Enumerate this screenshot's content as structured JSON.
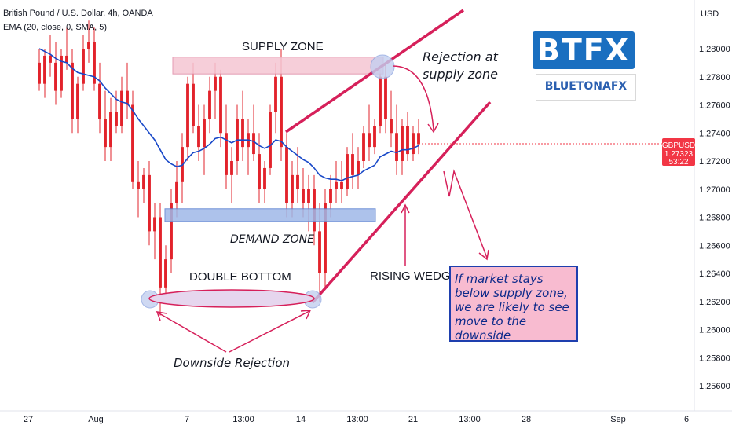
{
  "header": {
    "symbol_line": "British Pound / U.S. Dollar, 4h, OANDA",
    "indicator_line": "EMA (20, close, 0, SMA, 5)"
  },
  "currency_label": "USD",
  "ticker": {
    "symbol": "GBPUSD",
    "price": "1.27323",
    "countdown": "53:22"
  },
  "logo": {
    "main": "BTFX",
    "sub": "BLUETONAFX"
  },
  "colors": {
    "up": "#26a69a",
    "down": "#ef5350",
    "candle": "#e2232b",
    "ema": "#1848c8",
    "supply": "#f5c6d3",
    "demand": "#9fb8e8",
    "wedge": "#d6205a"
  },
  "annotations": {
    "supply_zone": "SUPPLY ZONE",
    "demand_zone": "DEMAND ZONE",
    "double_bottom": "DOUBLE BOTTOM",
    "rising_wedge": "RISING WEDGE",
    "rejection_line1": "Rejection at",
    "rejection_line2": "supply zone",
    "downside_rejection": "Downside Rejection",
    "note": "If market stays below supply zone, we are likely to see move to the downside"
  },
  "chart_data": {
    "type": "candlestick",
    "y_ticks": [
      "1.28000",
      "1.27800",
      "1.27600",
      "1.27400",
      "1.27200",
      "1.27000",
      "1.26800",
      "1.26600",
      "1.26400",
      "1.26200",
      "1.26000",
      "1.25800",
      "1.25600"
    ],
    "x_ticks": [
      "27",
      "Aug",
      "7",
      "13:00",
      "14",
      "13:00",
      "21",
      "13:00",
      "28",
      "Sep",
      "6"
    ],
    "ylim": [
      1.2553,
      1.2826
    ],
    "supply_zone": [
      1.2782,
      1.2794
    ],
    "demand_zone": [
      1.2677,
      1.2686
    ],
    "last_price": 1.27323,
    "candles": [
      [
        1.279,
        1.28,
        1.277,
        1.2775
      ],
      [
        1.2775,
        1.28,
        1.2765,
        1.2795
      ],
      [
        1.2795,
        1.281,
        1.278,
        1.279
      ],
      [
        1.279,
        1.2805,
        1.276,
        1.277
      ],
      [
        1.277,
        1.28,
        1.2765,
        1.2795
      ],
      [
        1.2795,
        1.2815,
        1.2785,
        1.279
      ],
      [
        1.279,
        1.28,
        1.274,
        1.275
      ],
      [
        1.275,
        1.278,
        1.274,
        1.2775
      ],
      [
        1.2775,
        1.281,
        1.277,
        1.28
      ],
      [
        1.28,
        1.282,
        1.279,
        1.2805
      ],
      [
        1.2805,
        1.2815,
        1.277,
        1.2775
      ],
      [
        1.2775,
        1.279,
        1.274,
        1.275
      ],
      [
        1.275,
        1.277,
        1.272,
        1.273
      ],
      [
        1.273,
        1.2765,
        1.272,
        1.2755
      ],
      [
        1.2755,
        1.277,
        1.274,
        1.2745
      ],
      [
        1.2745,
        1.278,
        1.274,
        1.277
      ],
      [
        1.277,
        1.279,
        1.275,
        1.276
      ],
      [
        1.276,
        1.277,
        1.27,
        1.2705
      ],
      [
        1.2705,
        1.272,
        1.268,
        1.27
      ],
      [
        1.27,
        1.2715,
        1.269,
        1.271
      ],
      [
        1.271,
        1.272,
        1.266,
        1.267
      ],
      [
        1.267,
        1.269,
        1.265,
        1.268
      ],
      [
        1.268,
        1.269,
        1.261,
        1.263
      ],
      [
        1.263,
        1.266,
        1.262,
        1.265
      ],
      [
        1.265,
        1.27,
        1.264,
        1.269
      ],
      [
        1.269,
        1.272,
        1.268,
        1.2705
      ],
      [
        1.2705,
        1.274,
        1.269,
        1.273
      ],
      [
        1.273,
        1.278,
        1.272,
        1.2775
      ],
      [
        1.2775,
        1.279,
        1.274,
        1.2745
      ],
      [
        1.2745,
        1.276,
        1.272,
        1.273
      ],
      [
        1.273,
        1.276,
        1.271,
        1.275
      ],
      [
        1.275,
        1.278,
        1.274,
        1.277
      ],
      [
        1.277,
        1.279,
        1.275,
        1.278
      ],
      [
        1.278,
        1.2785,
        1.273,
        1.274
      ],
      [
        1.274,
        1.276,
        1.27,
        1.271
      ],
      [
        1.271,
        1.273,
        1.269,
        1.272
      ],
      [
        1.272,
        1.276,
        1.271,
        1.275
      ],
      [
        1.275,
        1.277,
        1.272,
        1.273
      ],
      [
        1.273,
        1.275,
        1.271,
        1.274
      ],
      [
        1.274,
        1.276,
        1.272,
        1.2725
      ],
      [
        1.2725,
        1.274,
        1.269,
        1.27
      ],
      [
        1.27,
        1.272,
        1.269,
        1.2715
      ],
      [
        1.2715,
        1.276,
        1.271,
        1.2755
      ],
      [
        1.2755,
        1.279,
        1.274,
        1.278
      ],
      [
        1.278,
        1.28,
        1.272,
        1.273
      ],
      [
        1.273,
        1.274,
        1.268,
        1.269
      ],
      [
        1.269,
        1.272,
        1.268,
        1.271
      ],
      [
        1.271,
        1.273,
        1.269,
        1.27
      ],
      [
        1.27,
        1.2715,
        1.268,
        1.269
      ],
      [
        1.269,
        1.271,
        1.267,
        1.27
      ],
      [
        1.27,
        1.271,
        1.266,
        1.267
      ],
      [
        1.267,
        1.269,
        1.262,
        1.264
      ],
      [
        1.264,
        1.27,
        1.263,
        1.269
      ],
      [
        1.269,
        1.271,
        1.268,
        1.27
      ],
      [
        1.27,
        1.272,
        1.269,
        1.2705
      ],
      [
        1.2705,
        1.272,
        1.269,
        1.27
      ],
      [
        1.27,
        1.273,
        1.2695,
        1.2725
      ],
      [
        1.2725,
        1.274,
        1.27,
        1.271
      ],
      [
        1.271,
        1.273,
        1.27,
        1.272
      ],
      [
        1.272,
        1.2745,
        1.2715,
        1.274
      ],
      [
        1.274,
        1.276,
        1.272,
        1.273
      ],
      [
        1.273,
        1.275,
        1.2725,
        1.2745
      ],
      [
        1.2745,
        1.2785,
        1.274,
        1.278
      ],
      [
        1.278,
        1.279,
        1.274,
        1.275
      ],
      [
        1.275,
        1.277,
        1.273,
        1.274
      ],
      [
        1.274,
        1.276,
        1.271,
        1.272
      ],
      [
        1.272,
        1.275,
        1.271,
        1.2745
      ],
      [
        1.2745,
        1.2755,
        1.272,
        1.2725
      ],
      [
        1.2725,
        1.2745,
        1.272,
        1.274
      ],
      [
        1.274,
        1.275,
        1.2725,
        1.2732
      ]
    ],
    "ema": [
      1.28,
      1.2798,
      1.2796,
      1.2793,
      1.2791,
      1.279,
      1.2786,
      1.2783,
      1.2782,
      1.2781,
      1.278,
      1.2777,
      1.2772,
      1.2768,
      1.2764,
      1.2762,
      1.2761,
      1.2756,
      1.275,
      1.2745,
      1.274,
      1.2735,
      1.2728,
      1.2721,
      1.2718,
      1.2716,
      1.2717,
      1.2722,
      1.2726,
      1.2727,
      1.2729,
      1.2732,
      1.2736,
      1.2737,
      1.2735,
      1.2733,
      1.2735,
      1.2735,
      1.2735,
      1.2734,
      1.2731,
      1.2729,
      1.2731,
      1.2735,
      1.2734,
      1.273,
      1.2727,
      1.2724,
      1.2721,
      1.2719,
      1.2715,
      1.271,
      1.2708,
      1.2707,
      1.2707,
      1.2706,
      1.2708,
      1.2709,
      1.271,
      1.2713,
      1.2715,
      1.2717,
      1.2723,
      1.2725,
      1.2727,
      1.2726,
      1.2728,
      1.2728,
      1.2729,
      1.2731
    ]
  }
}
